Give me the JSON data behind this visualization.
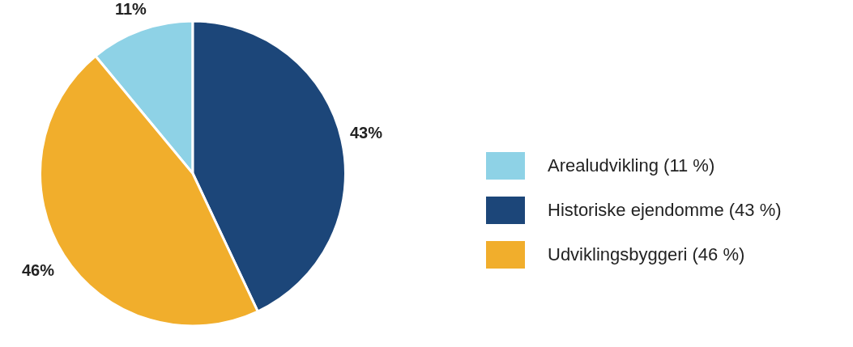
{
  "chart_data": {
    "type": "pie",
    "categories": [
      "Arealudvikling (11 %)",
      "Historiske ejendomme (43 %)",
      "Udviklingsbyggeri (46 %)"
    ],
    "values": [
      11,
      43,
      46
    ],
    "colors": [
      "#8ed2e6",
      "#1c4679",
      "#f1ae2c"
    ],
    "value_labels": [
      "11%",
      "43%",
      "46%"
    ],
    "legend": "right"
  }
}
